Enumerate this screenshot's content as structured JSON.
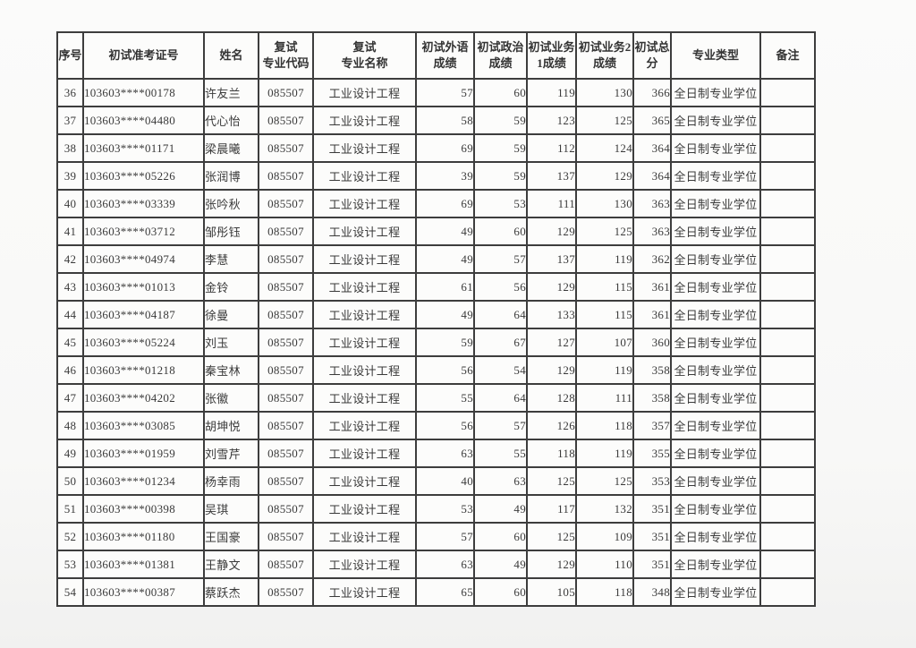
{
  "table": {
    "columns": [
      {
        "key": "seq",
        "label": "序号"
      },
      {
        "key": "ticket",
        "label": "初试准考证号"
      },
      {
        "key": "name",
        "label": "姓名"
      },
      {
        "key": "code",
        "label": "复试\n专业代码"
      },
      {
        "key": "major",
        "label": "复试\n专业名称"
      },
      {
        "key": "foreign",
        "label": "初试外语\n成绩"
      },
      {
        "key": "politics",
        "label": "初试政治\n成绩"
      },
      {
        "key": "sub1",
        "label": "初试业务\n1成绩"
      },
      {
        "key": "sub2",
        "label": "初试业务2\n成绩"
      },
      {
        "key": "total",
        "label": "初试总\n分"
      },
      {
        "key": "type",
        "label": "专业类型"
      },
      {
        "key": "remark",
        "label": "备注"
      }
    ],
    "rows": [
      {
        "seq": "36",
        "ticket": "103603****00178",
        "name": "许友兰",
        "code": "085507",
        "major": "工业设计工程",
        "foreign": "57",
        "politics": "60",
        "sub1": "119",
        "sub2": "130",
        "total": "366",
        "type": "全日制专业学位",
        "remark": ""
      },
      {
        "seq": "37",
        "ticket": "103603****04480",
        "name": "代心怡",
        "code": "085507",
        "major": "工业设计工程",
        "foreign": "58",
        "politics": "59",
        "sub1": "123",
        "sub2": "125",
        "total": "365",
        "type": "全日制专业学位",
        "remark": ""
      },
      {
        "seq": "38",
        "ticket": "103603****01171",
        "name": "梁晨曦",
        "code": "085507",
        "major": "工业设计工程",
        "foreign": "69",
        "politics": "59",
        "sub1": "112",
        "sub2": "124",
        "total": "364",
        "type": "全日制专业学位",
        "remark": ""
      },
      {
        "seq": "39",
        "ticket": "103603****05226",
        "name": "张润博",
        "code": "085507",
        "major": "工业设计工程",
        "foreign": "39",
        "politics": "59",
        "sub1": "137",
        "sub2": "129",
        "total": "364",
        "type": "全日制专业学位",
        "remark": ""
      },
      {
        "seq": "40",
        "ticket": "103603****03339",
        "name": "张吟秋",
        "code": "085507",
        "major": "工业设计工程",
        "foreign": "69",
        "politics": "53",
        "sub1": "111",
        "sub2": "130",
        "total": "363",
        "type": "全日制专业学位",
        "remark": ""
      },
      {
        "seq": "41",
        "ticket": "103603****03712",
        "name": "邹彤钰",
        "code": "085507",
        "major": "工业设计工程",
        "foreign": "49",
        "politics": "60",
        "sub1": "129",
        "sub2": "125",
        "total": "363",
        "type": "全日制专业学位",
        "remark": ""
      },
      {
        "seq": "42",
        "ticket": "103603****04974",
        "name": "李慧",
        "code": "085507",
        "major": "工业设计工程",
        "foreign": "49",
        "politics": "57",
        "sub1": "137",
        "sub2": "119",
        "total": "362",
        "type": "全日制专业学位",
        "remark": ""
      },
      {
        "seq": "43",
        "ticket": "103603****01013",
        "name": "金铃",
        "code": "085507",
        "major": "工业设计工程",
        "foreign": "61",
        "politics": "56",
        "sub1": "129",
        "sub2": "115",
        "total": "361",
        "type": "全日制专业学位",
        "remark": ""
      },
      {
        "seq": "44",
        "ticket": "103603****04187",
        "name": "徐曼",
        "code": "085507",
        "major": "工业设计工程",
        "foreign": "49",
        "politics": "64",
        "sub1": "133",
        "sub2": "115",
        "total": "361",
        "type": "全日制专业学位",
        "remark": ""
      },
      {
        "seq": "45",
        "ticket": "103603****05224",
        "name": "刘玉",
        "code": "085507",
        "major": "工业设计工程",
        "foreign": "59",
        "politics": "67",
        "sub1": "127",
        "sub2": "107",
        "total": "360",
        "type": "全日制专业学位",
        "remark": ""
      },
      {
        "seq": "46",
        "ticket": "103603****01218",
        "name": "秦宝林",
        "code": "085507",
        "major": "工业设计工程",
        "foreign": "56",
        "politics": "54",
        "sub1": "129",
        "sub2": "119",
        "total": "358",
        "type": "全日制专业学位",
        "remark": ""
      },
      {
        "seq": "47",
        "ticket": "103603****04202",
        "name": "张徽",
        "code": "085507",
        "major": "工业设计工程",
        "foreign": "55",
        "politics": "64",
        "sub1": "128",
        "sub2": "111",
        "total": "358",
        "type": "全日制专业学位",
        "remark": ""
      },
      {
        "seq": "48",
        "ticket": "103603****03085",
        "name": "胡坤悦",
        "code": "085507",
        "major": "工业设计工程",
        "foreign": "56",
        "politics": "57",
        "sub1": "126",
        "sub2": "118",
        "total": "357",
        "type": "全日制专业学位",
        "remark": ""
      },
      {
        "seq": "49",
        "ticket": "103603****01959",
        "name": "刘雪芹",
        "code": "085507",
        "major": "工业设计工程",
        "foreign": "63",
        "politics": "55",
        "sub1": "118",
        "sub2": "119",
        "total": "355",
        "type": "全日制专业学位",
        "remark": ""
      },
      {
        "seq": "50",
        "ticket": "103603****01234",
        "name": "杨幸雨",
        "code": "085507",
        "major": "工业设计工程",
        "foreign": "40",
        "politics": "63",
        "sub1": "125",
        "sub2": "125",
        "total": "353",
        "type": "全日制专业学位",
        "remark": ""
      },
      {
        "seq": "51",
        "ticket": "103603****00398",
        "name": "吴琪",
        "code": "085507",
        "major": "工业设计工程",
        "foreign": "53",
        "politics": "49",
        "sub1": "117",
        "sub2": "132",
        "total": "351",
        "type": "全日制专业学位",
        "remark": ""
      },
      {
        "seq": "52",
        "ticket": "103603****01180",
        "name": "王国豪",
        "code": "085507",
        "major": "工业设计工程",
        "foreign": "57",
        "politics": "60",
        "sub1": "125",
        "sub2": "109",
        "total": "351",
        "type": "全日制专业学位",
        "remark": ""
      },
      {
        "seq": "53",
        "ticket": "103603****01381",
        "name": "王静文",
        "code": "085507",
        "major": "工业设计工程",
        "foreign": "63",
        "politics": "49",
        "sub1": "129",
        "sub2": "110",
        "total": "351",
        "type": "全日制专业学位",
        "remark": ""
      },
      {
        "seq": "54",
        "ticket": "103603****00387",
        "name": "蔡跃杰",
        "code": "085507",
        "major": "工业设计工程",
        "foreign": "65",
        "politics": "60",
        "sub1": "105",
        "sub2": "118",
        "total": "348",
        "type": "全日制专业学位",
        "remark": ""
      }
    ]
  }
}
